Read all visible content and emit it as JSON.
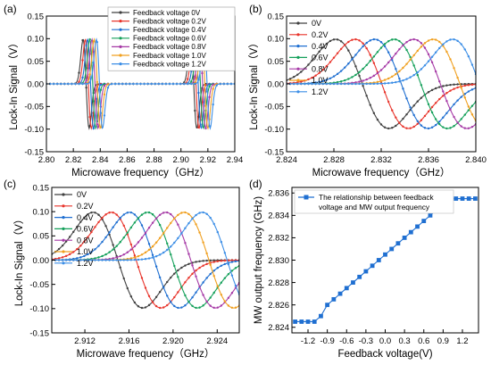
{
  "chart_data": [
    {
      "panel_label": "(a)",
      "type": "line",
      "xlabel": "Microwave frequency（GHz）",
      "ylabel": "Lock-In Signal（V）",
      "xlim": [
        2.8,
        2.94
      ],
      "ylim": [
        -0.15,
        0.15
      ],
      "xticks": [
        "2.80",
        "2.82",
        "2.84",
        "2.86",
        "2.88",
        "2.90",
        "2.92",
        "2.94"
      ],
      "yticks": [
        "-0.15",
        "-0.10",
        "-0.05",
        "0.00",
        "0.05",
        "0.10",
        "0.15"
      ],
      "legend": "top-right",
      "model": {
        "dip1_center": 2.8295,
        "dip2_center": 2.9095,
        "shift_per_series": 0.00165,
        "half_width": 0.0045,
        "amplitude": 0.125
      },
      "series": [
        {
          "name": "Feedback voltage 0V",
          "color": "#404040",
          "offset_index": 0
        },
        {
          "name": "Feedback voltage 0.2V",
          "color": "#e8352c",
          "offset_index": 1
        },
        {
          "name": "Feedback voltage 0.4V",
          "color": "#1f6fd1",
          "offset_index": 2
        },
        {
          "name": "Feedback voltage 0.6V",
          "color": "#14a05a",
          "offset_index": 3
        },
        {
          "name": "Feedback voltage 0.8V",
          "color": "#a63aa6",
          "offset_index": 4
        },
        {
          "name": "Feedback voltage 1.0V",
          "color": "#f0a020",
          "offset_index": 5
        },
        {
          "name": "Feedback voltage 1.2V",
          "color": "#3c8ee6",
          "offset_index": 6
        }
      ]
    },
    {
      "panel_label": "(b)",
      "type": "line",
      "xlabel": "Microwave frequency（GHz）",
      "ylabel": "Lock-In Signal（V）",
      "xlim": [
        2.824,
        2.84
      ],
      "ylim": [
        -0.15,
        0.15
      ],
      "xticks": [
        "2.824",
        "2.828",
        "2.832",
        "2.836",
        "2.840"
      ],
      "yticks": [
        "-0.15",
        "-0.10",
        "-0.05",
        "0.00",
        "0.05",
        "0.10",
        "0.15"
      ],
      "legend": "top-left",
      "model": {
        "center_0": 2.8304,
        "shift_per_series": 0.00165,
        "half_width": 0.0045,
        "amplitude": 0.125
      },
      "series": [
        {
          "name": "0V",
          "color": "#404040",
          "offset_index": 0
        },
        {
          "name": "0.2V",
          "color": "#e8352c",
          "offset_index": 1
        },
        {
          "name": "0.4V",
          "color": "#1f6fd1",
          "offset_index": 2
        },
        {
          "name": "0.6V",
          "color": "#14a05a",
          "offset_index": 3
        },
        {
          "name": "0.8V",
          "color": "#a63aa6",
          "offset_index": 4
        },
        {
          "name": "1.0V",
          "color": "#f0a020",
          "offset_index": 5
        },
        {
          "name": "1.2V",
          "color": "#3c8ee6",
          "offset_index": 6
        }
      ]
    },
    {
      "panel_label": "(c)",
      "type": "line",
      "xlabel": "Microwave frequency（GHz）",
      "ylabel": "Lock-In Signal（V）",
      "xlim": [
        2.909,
        2.926
      ],
      "ylim": [
        -0.15,
        0.15
      ],
      "xticks": [
        "2.912",
        "2.916",
        "2.920",
        "2.924"
      ],
      "yticks": [
        "-0.15",
        "-0.10",
        "-0.05",
        "0.00",
        "0.05",
        "0.10",
        "0.15"
      ],
      "legend": "top-left",
      "model": {
        "center_0": 2.915,
        "shift_per_series": 0.00165,
        "half_width": 0.0045,
        "amplitude": 0.125
      },
      "series": [
        {
          "name": "0V",
          "color": "#404040",
          "offset_index": 0
        },
        {
          "name": "0.2V",
          "color": "#e8352c",
          "offset_index": 1
        },
        {
          "name": "0.4V",
          "color": "#1f6fd1",
          "offset_index": 2
        },
        {
          "name": "0.6V",
          "color": "#14a05a",
          "offset_index": 3
        },
        {
          "name": "0.8V",
          "color": "#a63aa6",
          "offset_index": 4
        },
        {
          "name": "1.0V",
          "color": "#f0a020",
          "offset_index": 5
        },
        {
          "name": "1.2V",
          "color": "#3c8ee6",
          "offset_index": 6
        }
      ]
    },
    {
      "panel_label": "(d)",
      "type": "line",
      "xlabel": "Feedback voltage(V)",
      "ylabel": "MW output frequency (GHz)",
      "xlim": [
        -1.45,
        1.45
      ],
      "ylim": [
        2.8235,
        2.8365
      ],
      "xticks": [
        "-1.2",
        "-0.9",
        "-0.6",
        "-0.3",
        "0.0",
        "0.3",
        "0.6",
        "0.9",
        "1.2"
      ],
      "yticks": [
        "2.824",
        "2.826",
        "2.828",
        "2.830",
        "2.832",
        "2.834",
        "2.836"
      ],
      "legend": "top-left",
      "legend_lines": [
        "The relationship between feedback",
        "voltage and MW output frequency"
      ],
      "series": [
        {
          "name": "The relationship between feedback voltage and MW output frequency",
          "color": "#1f6fd1",
          "x": [
            -1.4,
            -1.3,
            -1.2,
            -1.1,
            -1.0,
            -0.9,
            -0.8,
            -0.7,
            -0.6,
            -0.5,
            -0.4,
            -0.3,
            -0.2,
            -0.1,
            0.0,
            0.1,
            0.2,
            0.3,
            0.4,
            0.5,
            0.6,
            0.7,
            0.8,
            0.9,
            1.0,
            1.1,
            1.2,
            1.3,
            1.4
          ],
          "y": [
            2.8245,
            2.8245,
            2.8245,
            2.8245,
            2.825,
            2.826,
            2.8265,
            2.827,
            2.8275,
            2.828,
            2.8285,
            2.829,
            2.8295,
            2.83,
            2.8305,
            2.831,
            2.8315,
            2.832,
            2.8325,
            2.833,
            2.8335,
            2.834,
            2.8345,
            2.835,
            2.8355,
            2.8355,
            2.8355,
            2.8355,
            2.8355
          ]
        }
      ]
    }
  ]
}
